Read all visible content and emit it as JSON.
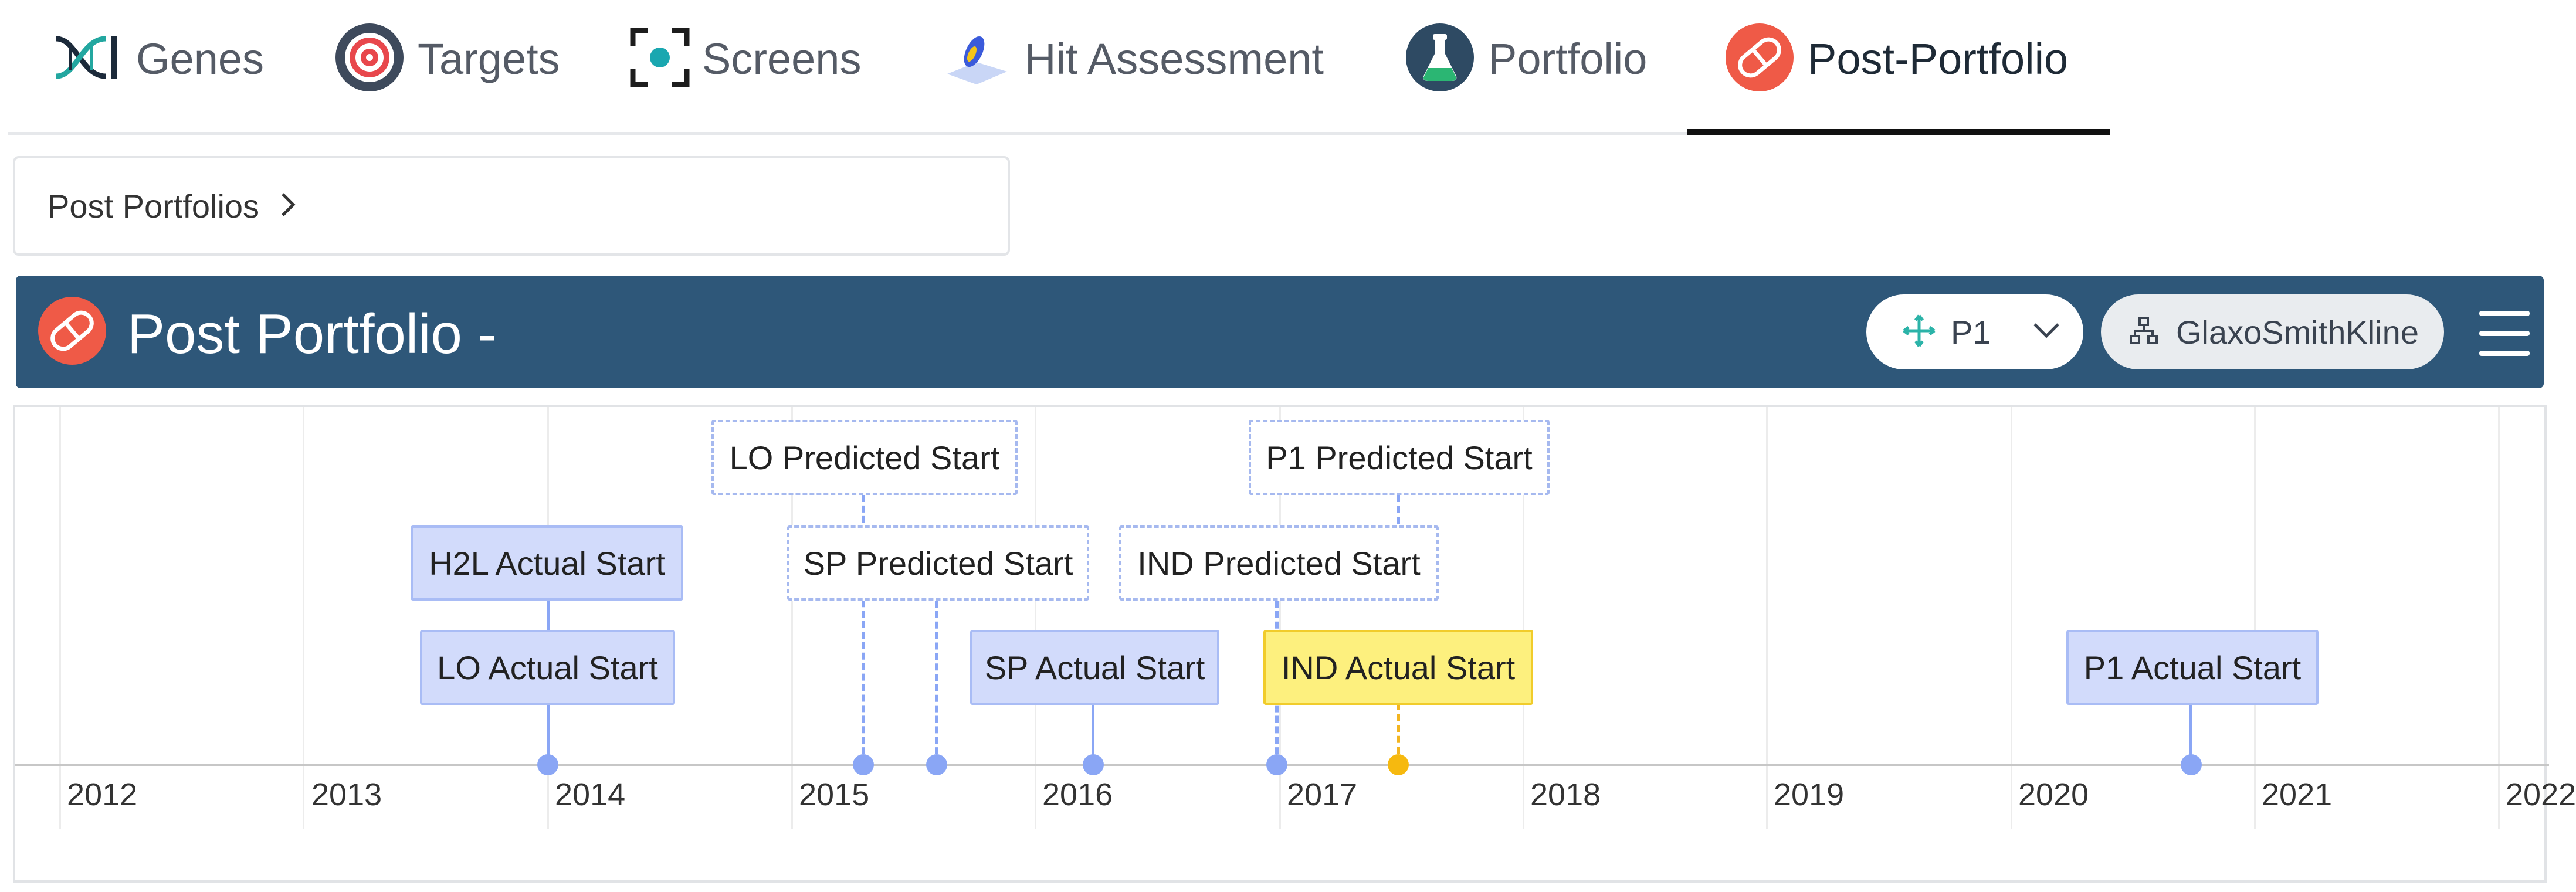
{
  "nav": {
    "tabs": [
      {
        "label": "Genes",
        "icon": "dna-icon"
      },
      {
        "label": "Targets",
        "icon": "target-icon"
      },
      {
        "label": "Screens",
        "icon": "screen-icon"
      },
      {
        "label": "Hit Assessment",
        "icon": "flask-icon"
      },
      {
        "label": "Portfolio",
        "icon": "beaker-icon"
      },
      {
        "label": "Post-Portfolio",
        "icon": "pill-icon",
        "active": true
      }
    ]
  },
  "breadcrumb": {
    "label": "Post Portfolios"
  },
  "header": {
    "title": "Post Portfolio -",
    "stage": "P1",
    "organization": "GlaxoSmithKline"
  },
  "timeline": {
    "years": [
      "2012",
      "2013",
      "2014",
      "2015",
      "2016",
      "2017",
      "2018",
      "2019",
      "2020",
      "2021",
      "2022"
    ],
    "events": {
      "h2l_actual": "H2L Actual Start",
      "lo_actual": "LO Actual Start",
      "lo_predicted": "LO Predicted Start",
      "sp_predicted": "SP Predicted Start",
      "sp_actual": "SP Actual Start",
      "ind_predicted": "IND Predicted Start",
      "p1_predicted": "P1 Predicted Start",
      "ind_actual": "IND Actual Start",
      "p1_actual": "P1 Actual Start"
    }
  },
  "colors": {
    "header_bg": "#2e5779",
    "actual_fill": "#d2dbfb",
    "current_fill": "#fdf07e",
    "marker": "#8aa6f5",
    "current_marker": "#f6b90f",
    "brand_red": "#ef5a47"
  }
}
